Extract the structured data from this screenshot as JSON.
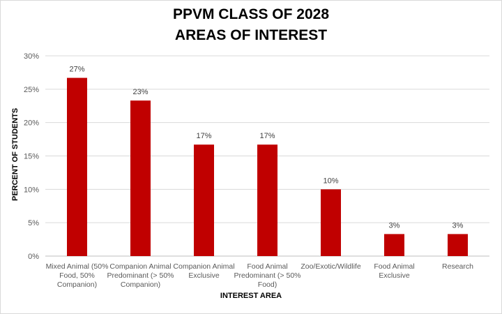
{
  "chart_data": {
    "type": "bar",
    "title_lines": [
      "PPVM CLASS OF 2028",
      "AREAS OF INTEREST"
    ],
    "xlabel": "INTEREST AREA",
    "ylabel": "PERCENT OF STUDENTS",
    "ylim": [
      0,
      30
    ],
    "yticks": [
      "0%",
      "5%",
      "10%",
      "15%",
      "20%",
      "25%",
      "30%"
    ],
    "grid": true,
    "bar_color": "#c00000",
    "categories": [
      [
        "Mixed Animal (50%",
        "Food, 50%",
        "Companion)"
      ],
      [
        "Companion Animal",
        "Predominant (> 50%",
        "Companion)"
      ],
      [
        "Companion Animal",
        "Exclusive"
      ],
      [
        "Food Animal",
        "Predominant (> 50%",
        "Food)"
      ],
      [
        "Zoo/Exotic/Wildlife"
      ],
      [
        "Food Animal",
        "Exclusive"
      ],
      [
        "Research"
      ]
    ],
    "values": [
      26.7,
      23.3,
      16.7,
      16.7,
      10.0,
      3.3,
      3.3
    ],
    "data_labels": [
      "27%",
      "23%",
      "17%",
      "17%",
      "10%",
      "3%",
      "3%"
    ]
  }
}
